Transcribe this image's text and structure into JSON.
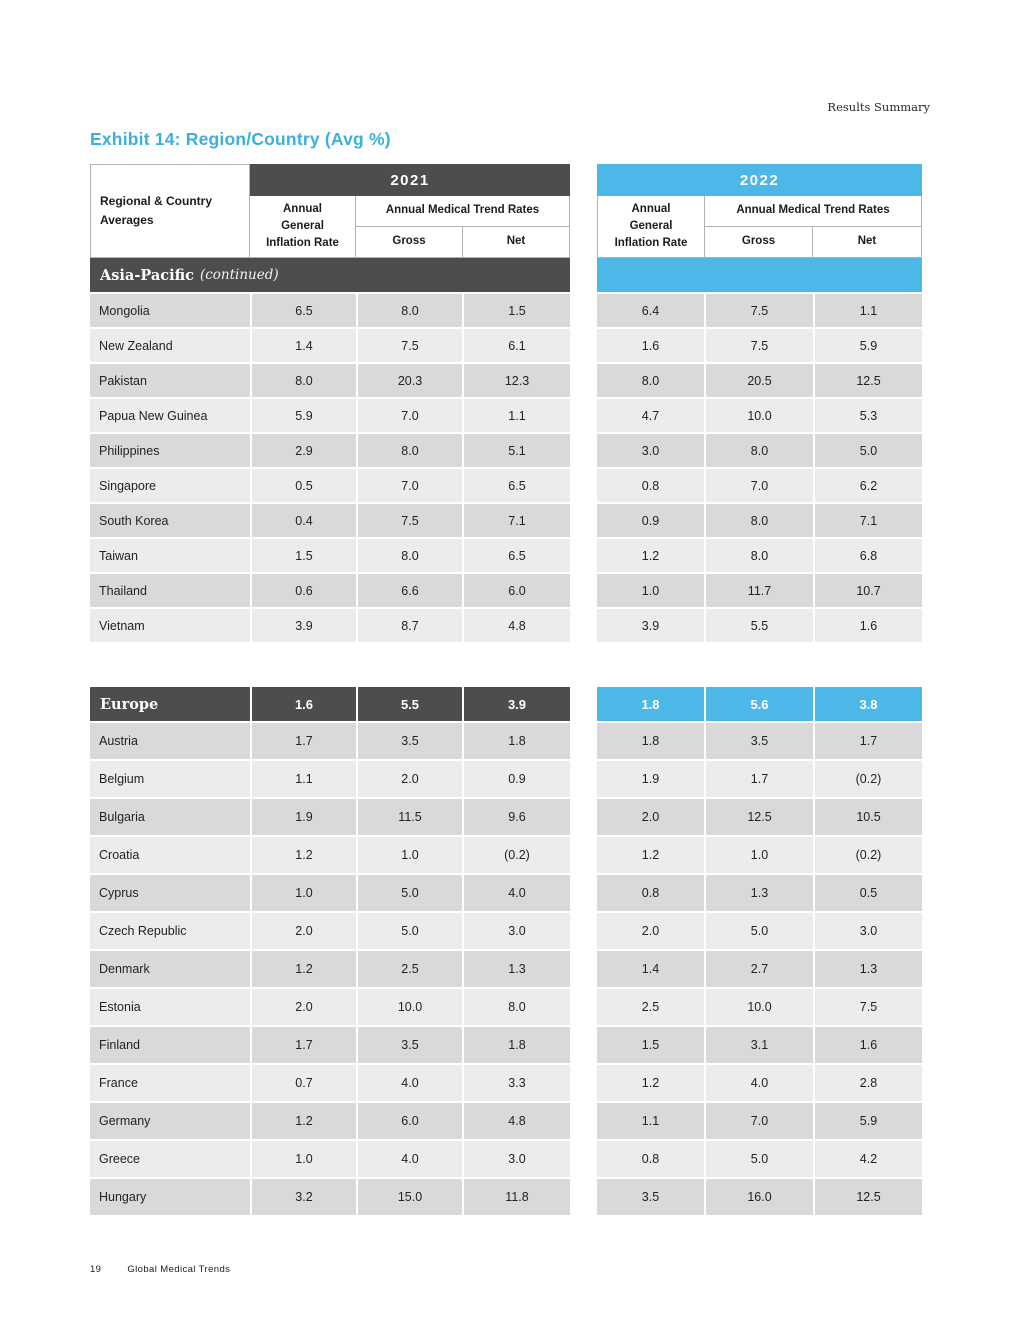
{
  "page": {
    "eyebrow": "Results Summary",
    "title": "Exhibit 14: Region/Country (Avg %)",
    "footer_page_number": "19",
    "footer_text": "Global Medical Trends"
  },
  "colors": {
    "accent_blue": "#4db8e8",
    "title_blue": "#3bafe0",
    "dark_gray": "#4d4d4d",
    "row_odd": "#d9d9d9",
    "row_even": "#ececec"
  },
  "table": {
    "row_header": "Regional & Country Averages",
    "year_left": "2021",
    "year_right": "2022",
    "col_inflation": "Annual General Inflation Rate",
    "col_trend": "Annual Medical Trend Rates",
    "col_gross": "Gross",
    "col_net": "Net",
    "sections": [
      {
        "label": "Asia-Pacific",
        "label_suffix": "(continued)",
        "summary_2021": null,
        "summary_2022": null,
        "rows": [
          {
            "country": "Mongolia",
            "y2021": [
              "6.5",
              "8.0",
              "1.5"
            ],
            "y2022": [
              "6.4",
              "7.5",
              "1.1"
            ]
          },
          {
            "country": "New Zealand",
            "y2021": [
              "1.4",
              "7.5",
              "6.1"
            ],
            "y2022": [
              "1.6",
              "7.5",
              "5.9"
            ]
          },
          {
            "country": "Pakistan",
            "y2021": [
              "8.0",
              "20.3",
              "12.3"
            ],
            "y2022": [
              "8.0",
              "20.5",
              "12.5"
            ]
          },
          {
            "country": "Papua New Guinea",
            "y2021": [
              "5.9",
              "7.0",
              "1.1"
            ],
            "y2022": [
              "4.7",
              "10.0",
              "5.3"
            ]
          },
          {
            "country": "Philippines",
            "y2021": [
              "2.9",
              "8.0",
              "5.1"
            ],
            "y2022": [
              "3.0",
              "8.0",
              "5.0"
            ]
          },
          {
            "country": "Singapore",
            "y2021": [
              "0.5",
              "7.0",
              "6.5"
            ],
            "y2022": [
              "0.8",
              "7.0",
              "6.2"
            ]
          },
          {
            "country": "South Korea",
            "y2021": [
              "0.4",
              "7.5",
              "7.1"
            ],
            "y2022": [
              "0.9",
              "8.0",
              "7.1"
            ]
          },
          {
            "country": "Taiwan",
            "y2021": [
              "1.5",
              "8.0",
              "6.5"
            ],
            "y2022": [
              "1.2",
              "8.0",
              "6.8"
            ]
          },
          {
            "country": "Thailand",
            "y2021": [
              "0.6",
              "6.6",
              "6.0"
            ],
            "y2022": [
              "1.0",
              "11.7",
              "10.7"
            ]
          },
          {
            "country": "Vietnam",
            "y2021": [
              "3.9",
              "8.7",
              "4.8"
            ],
            "y2022": [
              "3.9",
              "5.5",
              "1.6"
            ]
          }
        ]
      },
      {
        "label": "Europe",
        "label_suffix": "",
        "summary_2021": [
          "1.6",
          "5.5",
          "3.9"
        ],
        "summary_2022": [
          "1.8",
          "5.6",
          "3.8"
        ],
        "rows": [
          {
            "country": "Austria",
            "y2021": [
              "1.7",
              "3.5",
              "1.8"
            ],
            "y2022": [
              "1.8",
              "3.5",
              "1.7"
            ]
          },
          {
            "country": "Belgium",
            "y2021": [
              "1.1",
              "2.0",
              "0.9"
            ],
            "y2022": [
              "1.9",
              "1.7",
              "(0.2)"
            ]
          },
          {
            "country": "Bulgaria",
            "y2021": [
              "1.9",
              "11.5",
              "9.6"
            ],
            "y2022": [
              "2.0",
              "12.5",
              "10.5"
            ]
          },
          {
            "country": "Croatia",
            "y2021": [
              "1.2",
              "1.0",
              "(0.2)"
            ],
            "y2022": [
              "1.2",
              "1.0",
              "(0.2)"
            ]
          },
          {
            "country": "Cyprus",
            "y2021": [
              "1.0",
              "5.0",
              "4.0"
            ],
            "y2022": [
              "0.8",
              "1.3",
              "0.5"
            ]
          },
          {
            "country": "Czech Republic",
            "y2021": [
              "2.0",
              "5.0",
              "3.0"
            ],
            "y2022": [
              "2.0",
              "5.0",
              "3.0"
            ]
          },
          {
            "country": "Denmark",
            "y2021": [
              "1.2",
              "2.5",
              "1.3"
            ],
            "y2022": [
              "1.4",
              "2.7",
              "1.3"
            ]
          },
          {
            "country": "Estonia",
            "y2021": [
              "2.0",
              "10.0",
              "8.0"
            ],
            "y2022": [
              "2.5",
              "10.0",
              "7.5"
            ]
          },
          {
            "country": "Finland",
            "y2021": [
              "1.7",
              "3.5",
              "1.8"
            ],
            "y2022": [
              "1.5",
              "3.1",
              "1.6"
            ]
          },
          {
            "country": "France",
            "y2021": [
              "0.7",
              "4.0",
              "3.3"
            ],
            "y2022": [
              "1.2",
              "4.0",
              "2.8"
            ]
          },
          {
            "country": "Germany",
            "y2021": [
              "1.2",
              "6.0",
              "4.8"
            ],
            "y2022": [
              "1.1",
              "7.0",
              "5.9"
            ]
          },
          {
            "country": "Greece",
            "y2021": [
              "1.0",
              "4.0",
              "3.0"
            ],
            "y2022": [
              "0.8",
              "5.0",
              "4.2"
            ]
          },
          {
            "country": "Hungary",
            "y2021": [
              "3.2",
              "15.0",
              "11.8"
            ],
            "y2022": [
              "3.5",
              "16.0",
              "12.5"
            ]
          }
        ]
      }
    ]
  }
}
